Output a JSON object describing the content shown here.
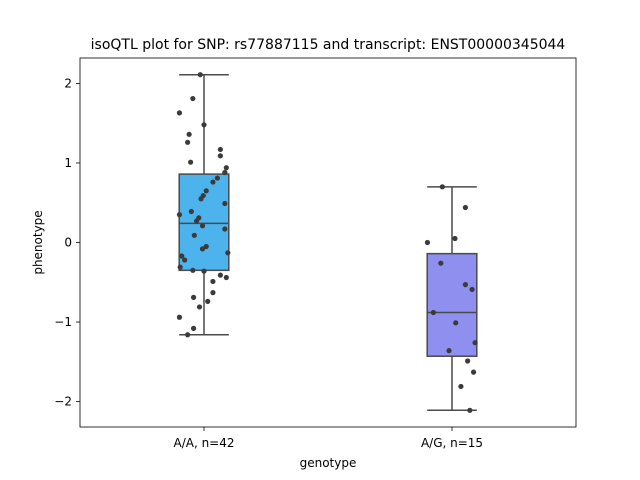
{
  "chart_data": {
    "type": "box",
    "title": "isoQTL plot for SNP: rs77887115 and transcript: ENST00000345044",
    "xlabel": "genotype",
    "ylabel": "phenotype",
    "ylim": [
      -2.32,
      2.32
    ],
    "yticks": [
      -2,
      -1,
      0,
      1,
      2
    ],
    "yticklabels": [
      "−2",
      "−1",
      "0",
      "1",
      "2"
    ],
    "categories": [
      "A/A, n=42",
      "A/G, n=15"
    ],
    "boxes": [
      {
        "color": "#4cb3ec",
        "q1": -0.35,
        "median": 0.24,
        "q3": 0.86,
        "whisker_low": -1.16,
        "whisker_high": 2.11
      },
      {
        "color": "#8f8ff0",
        "q1": -1.43,
        "median": -0.88,
        "q3": -0.14,
        "whisker_low": -2.11,
        "whisker_high": 0.7
      }
    ],
    "points": [
      [
        {
          "x": -0.05,
          "y": 2.11
        },
        {
          "x": -0.15,
          "y": 1.81
        },
        {
          "x": 0.0,
          "y": 1.48
        },
        {
          "x": -0.33,
          "y": 1.63
        },
        {
          "x": -0.2,
          "y": 1.36
        },
        {
          "x": -0.22,
          "y": 1.26
        },
        {
          "x": 0.22,
          "y": 1.17
        },
        {
          "x": 0.22,
          "y": 1.09
        },
        {
          "x": -0.18,
          "y": 1.01
        },
        {
          "x": 0.3,
          "y": 0.94
        },
        {
          "x": 0.28,
          "y": 0.88
        },
        {
          "x": 0.18,
          "y": 0.81
        },
        {
          "x": 0.12,
          "y": 0.76
        },
        {
          "x": 0.03,
          "y": 0.65
        },
        {
          "x": -0.01,
          "y": 0.59
        },
        {
          "x": -0.04,
          "y": 0.55
        },
        {
          "x": 0.28,
          "y": 0.49
        },
        {
          "x": -0.17,
          "y": 0.39
        },
        {
          "x": -0.33,
          "y": 0.35
        },
        {
          "x": -0.07,
          "y": 0.31
        },
        {
          "x": -0.1,
          "y": 0.27
        },
        {
          "x": -0.02,
          "y": 0.21
        },
        {
          "x": 0.28,
          "y": 0.17
        },
        {
          "x": -0.13,
          "y": 0.09
        },
        {
          "x": 0.03,
          "y": -0.05
        },
        {
          "x": -0.02,
          "y": -0.08
        },
        {
          "x": 0.32,
          "y": -0.13
        },
        {
          "x": -0.3,
          "y": -0.17
        },
        {
          "x": -0.26,
          "y": -0.22
        },
        {
          "x": -0.32,
          "y": -0.31
        },
        {
          "x": -0.15,
          "y": -0.35
        },
        {
          "x": 0.22,
          "y": -0.41
        },
        {
          "x": 0.3,
          "y": -0.44
        },
        {
          "x": 0.12,
          "y": -0.49
        },
        {
          "x": 0.12,
          "y": -0.63
        },
        {
          "x": -0.14,
          "y": -0.69
        },
        {
          "x": 0.05,
          "y": -0.74
        },
        {
          "x": -0.06,
          "y": -0.81
        },
        {
          "x": -0.33,
          "y": -0.94
        },
        {
          "x": -0.14,
          "y": -1.08
        },
        {
          "x": -0.22,
          "y": -1.16
        },
        {
          "x": 0.0,
          "y": -0.36
        }
      ],
      [
        {
          "x": -0.13,
          "y": 0.7
        },
        {
          "x": 0.18,
          "y": 0.44
        },
        {
          "x": 0.04,
          "y": 0.05
        },
        {
          "x": -0.33,
          "y": 0.0
        },
        {
          "x": -0.15,
          "y": -0.26
        },
        {
          "x": 0.18,
          "y": -0.53
        },
        {
          "x": 0.27,
          "y": -0.59
        },
        {
          "x": -0.25,
          "y": -0.88
        },
        {
          "x": 0.05,
          "y": -1.01
        },
        {
          "x": 0.31,
          "y": -1.26
        },
        {
          "x": -0.04,
          "y": -1.36
        },
        {
          "x": 0.21,
          "y": -1.49
        },
        {
          "x": 0.29,
          "y": -1.63
        },
        {
          "x": 0.12,
          "y": -1.81
        },
        {
          "x": 0.24,
          "y": -2.11
        }
      ]
    ],
    "grid": false,
    "legend": "none"
  }
}
